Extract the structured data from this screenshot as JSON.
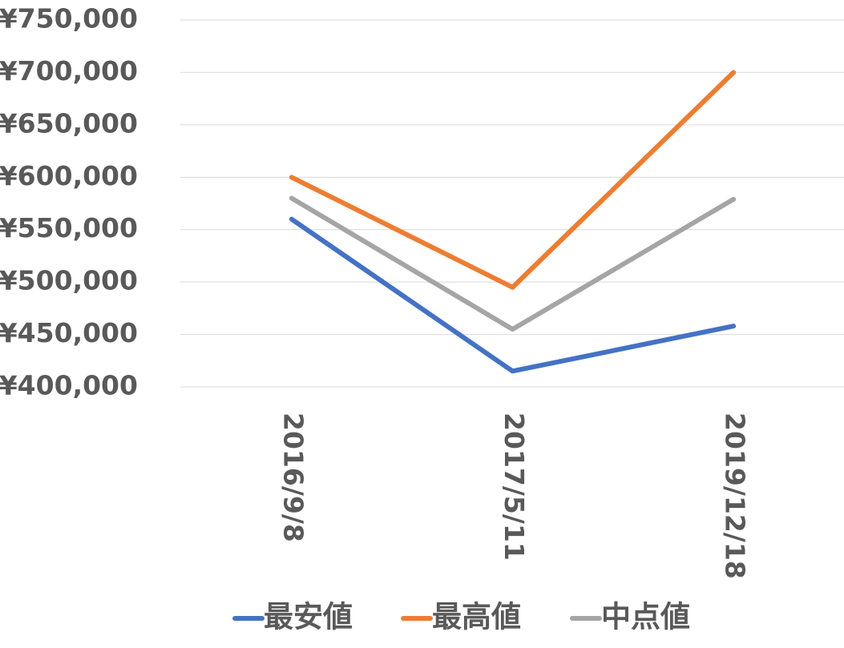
{
  "chart_data": {
    "type": "line",
    "categories": [
      "2016/9/8",
      "2017/5/11",
      "2019/12/18"
    ],
    "series": [
      {
        "name": "最安値",
        "color": "#4472c4",
        "values": [
          560000,
          415000,
          458000
        ]
      },
      {
        "name": "最高値",
        "color": "#ed7d31",
        "values": [
          600000,
          495000,
          700000
        ]
      },
      {
        "name": "中点値",
        "color": "#a5a5a5",
        "values": [
          580000,
          455000,
          579000
        ]
      }
    ],
    "ylim": [
      400000,
      750000
    ],
    "yticks": [
      {
        "value": 400000,
        "label": "¥400,000"
      },
      {
        "value": 450000,
        "label": "¥450,000"
      },
      {
        "value": 500000,
        "label": "¥500,000"
      },
      {
        "value": 550000,
        "label": "¥550,000"
      },
      {
        "value": 600000,
        "label": "¥600,000"
      },
      {
        "value": 650000,
        "label": "¥650,000"
      },
      {
        "value": 700000,
        "label": "¥700,000"
      },
      {
        "value": 750000,
        "label": "¥750,000"
      }
    ],
    "grid": true,
    "legend": "bottom"
  }
}
